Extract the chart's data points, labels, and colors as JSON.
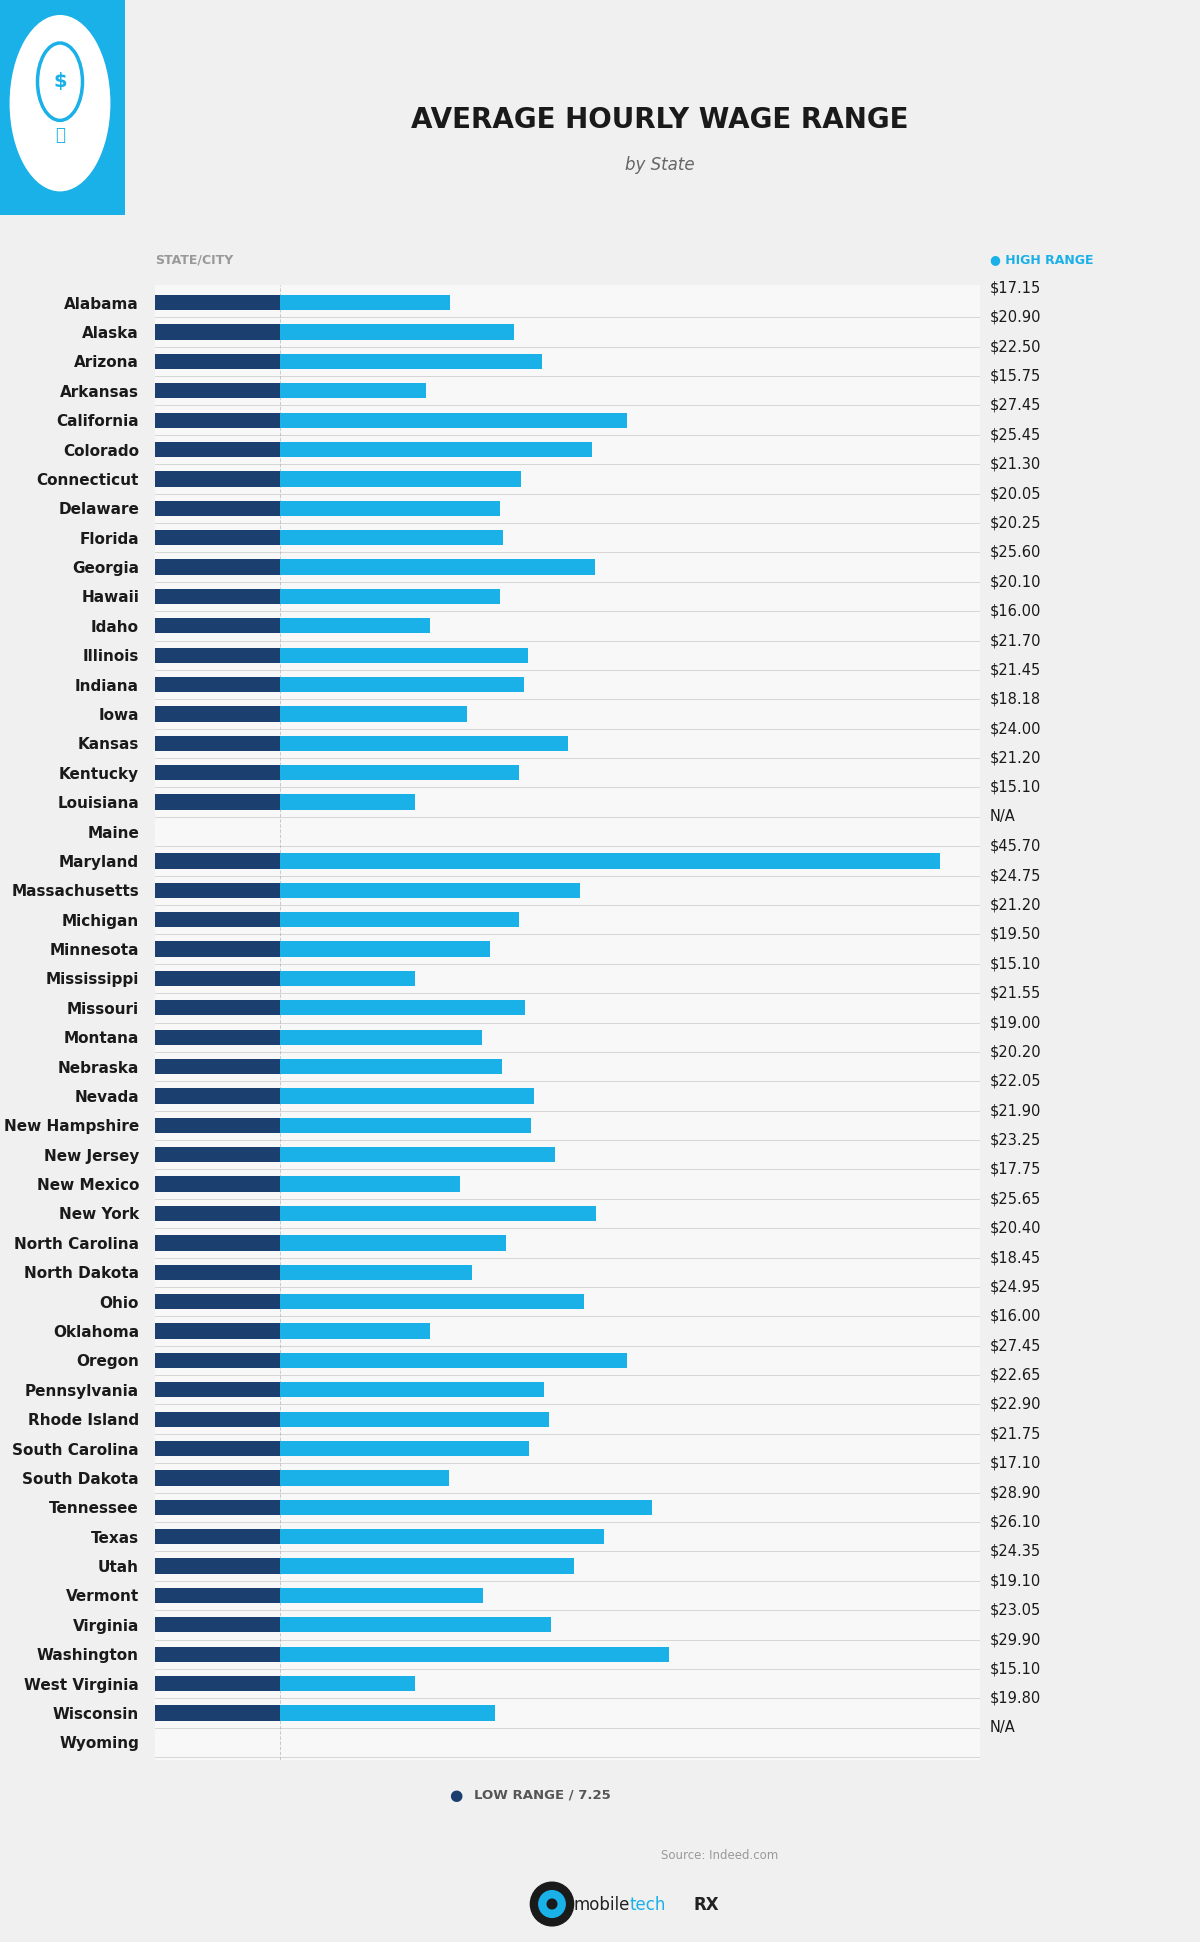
{
  "title": "AVERAGE HOURLY WAGE RANGE",
  "subtitle": "by State",
  "states": [
    "Alabama",
    "Alaska",
    "Arizona",
    "Arkansas",
    "California",
    "Colorado",
    "Connecticut",
    "Delaware",
    "Florida",
    "Georgia",
    "Hawaii",
    "Idaho",
    "Illinois",
    "Indiana",
    "Iowa",
    "Kansas",
    "Kentucky",
    "Louisiana",
    "Maine",
    "Maryland",
    "Massachusetts",
    "Michigan",
    "Minnesota",
    "Mississippi",
    "Missouri",
    "Montana",
    "Nebraska",
    "Nevada",
    "New Hampshire",
    "New Jersey",
    "New Mexico",
    "New York",
    "North Carolina",
    "North Dakota",
    "Ohio",
    "Oklahoma",
    "Oregon",
    "Pennsylvania",
    "Rhode Island",
    "South Carolina",
    "South Dakota",
    "Tennessee",
    "Texas",
    "Utah",
    "Vermont",
    "Virginia",
    "Washington",
    "West Virginia",
    "Wisconsin",
    "Wyoming"
  ],
  "high_range": [
    17.15,
    20.9,
    22.5,
    15.75,
    27.45,
    25.45,
    21.3,
    20.05,
    20.25,
    25.6,
    20.1,
    16.0,
    21.7,
    21.45,
    18.18,
    24.0,
    21.2,
    15.1,
    null,
    45.7,
    24.75,
    21.2,
    19.5,
    15.1,
    21.55,
    19.0,
    20.2,
    22.05,
    21.9,
    23.25,
    17.75,
    25.65,
    20.4,
    18.45,
    24.95,
    16.0,
    27.45,
    22.65,
    22.9,
    21.75,
    17.1,
    28.9,
    26.1,
    24.35,
    19.1,
    23.05,
    29.9,
    15.1,
    19.8,
    null
  ],
  "low_range": 7.25,
  "high_range_labels": [
    "$17.15",
    "$20.90",
    "$22.50",
    "$15.75",
    "$27.45",
    "$25.45",
    "$21.30",
    "$20.05",
    "$20.25",
    "$25.60",
    "$20.10",
    "$16.00",
    "$21.70",
    "$21.45",
    "$18.18",
    "$24.00",
    "$21.20",
    "$15.10",
    "N/A",
    "$45.70",
    "$24.75",
    "$21.20",
    "$19.50",
    "$15.10",
    "$21.55",
    "$19.00",
    "$20.20",
    "$22.05",
    "$21.90",
    "$23.25",
    "$17.75",
    "$25.65",
    "$20.40",
    "$18.45",
    "$24.95",
    "$16.00",
    "$27.45",
    "$22.65",
    "$22.90",
    "$21.75",
    "$17.10",
    "$28.90",
    "$26.10",
    "$24.35",
    "$19.10",
    "$23.05",
    "$29.90",
    "$15.10",
    "$19.80",
    "N/A"
  ],
  "dark_blue": "#1b3f6e",
  "light_blue": "#1ab0e8",
  "dot_blue": "#1ab0e8",
  "header_label_left": "STATE/CITY",
  "header_label_right": "HIGH RANGE",
  "legend_label": "LOW RANGE / 7.25",
  "source": "Source: Indeed.com",
  "bar_height": 0.52,
  "bg_color": "#f0f0f0",
  "bar_area_bg": "#f8f8f8",
  "title_fontsize": 20,
  "subtitle_fontsize": 12,
  "label_fontsize": 11,
  "value_fontsize": 10.5,
  "header_fontsize": 9,
  "icon_bg": "#1ab0e8",
  "icon_circle_color": "#ffffff"
}
